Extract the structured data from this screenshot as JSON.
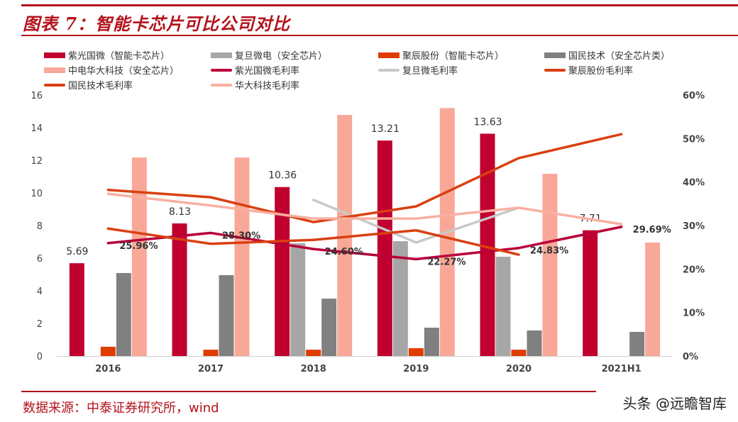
{
  "title": "图表 7：智能卡芯片可比公司对比",
  "source": "数据来源：中泰证券研究所，wind",
  "watermark": "头条 @远瞻智库",
  "chart_data": {
    "type": "bar+line",
    "categories": [
      "2016",
      "2017",
      "2018",
      "2019",
      "2020",
      "2021H1"
    ],
    "y_left": {
      "min": 0,
      "max": 16,
      "ticks": [
        0,
        2,
        4,
        6,
        8,
        10,
        12,
        14,
        16
      ],
      "tick_labels": [
        "0",
        "2",
        "4",
        "6",
        "8",
        "10",
        "12",
        "14",
        "16"
      ]
    },
    "y_right": {
      "min": 0,
      "max": 60,
      "ticks": [
        0,
        10,
        20,
        30,
        40,
        50,
        60
      ],
      "tick_labels": [
        "0%",
        "10%",
        "20%",
        "30%",
        "40%",
        "50%",
        "60%"
      ]
    },
    "grid": false,
    "legend_position": "top",
    "bar_series": [
      {
        "name": "紫光国微（智能卡芯片）",
        "color": "#c0002e",
        "values": [
          5.69,
          8.13,
          10.36,
          13.21,
          13.63,
          7.71
        ],
        "data_labels": [
          "5.69",
          "8.13",
          "10.36",
          "13.21",
          "13.63",
          "7.71"
        ]
      },
      {
        "name": "复旦微电（安全芯片）",
        "color": "#a6a6a6",
        "values": [
          null,
          null,
          6.91,
          7.04,
          6.09,
          null
        ]
      },
      {
        "name": "聚辰股份（智能卡芯片）",
        "color": "#e03c00",
        "values": [
          0.57,
          0.39,
          0.39,
          0.48,
          0.39,
          null
        ]
      },
      {
        "name": "国民技术（安全芯片类）",
        "color": "#808080",
        "values": [
          5.09,
          4.96,
          3.52,
          1.74,
          1.57,
          1.48
        ]
      },
      {
        "name": "中电华大科技（安全芯片）",
        "color": "#f9a898",
        "values": [
          12.17,
          12.17,
          14.78,
          15.2,
          11.17,
          6.96
        ]
      }
    ],
    "line_series": [
      {
        "name": "紫光国微毛利率",
        "color": "#b8003a",
        "values": [
          25.96,
          28.3,
          24.6,
          22.27,
          24.83,
          29.69
        ],
        "data_labels": [
          "25.96%",
          "28.30%",
          "24.60%",
          "22.27%",
          "24.83%",
          "29.69%"
        ]
      },
      {
        "name": "复旦微毛利率",
        "color": "#c8c8c8",
        "values": [
          null,
          null,
          35.9,
          26.1,
          34.1,
          null
        ]
      },
      {
        "name": "聚辰股份毛利率",
        "color": "#d94011",
        "values": [
          38.2,
          36.5,
          30.8,
          34.4,
          45.5,
          51.0
        ]
      },
      {
        "name": "国民技术毛利率",
        "color": "#d94011",
        "values": [
          29.3,
          25.8,
          26.7,
          28.9,
          23.3,
          null
        ]
      },
      {
        "name": "华大科技毛利率",
        "color": "#f8b0a0",
        "values": [
          37.3,
          34.6,
          31.6,
          31.6,
          34.1,
          30.3
        ]
      }
    ]
  }
}
